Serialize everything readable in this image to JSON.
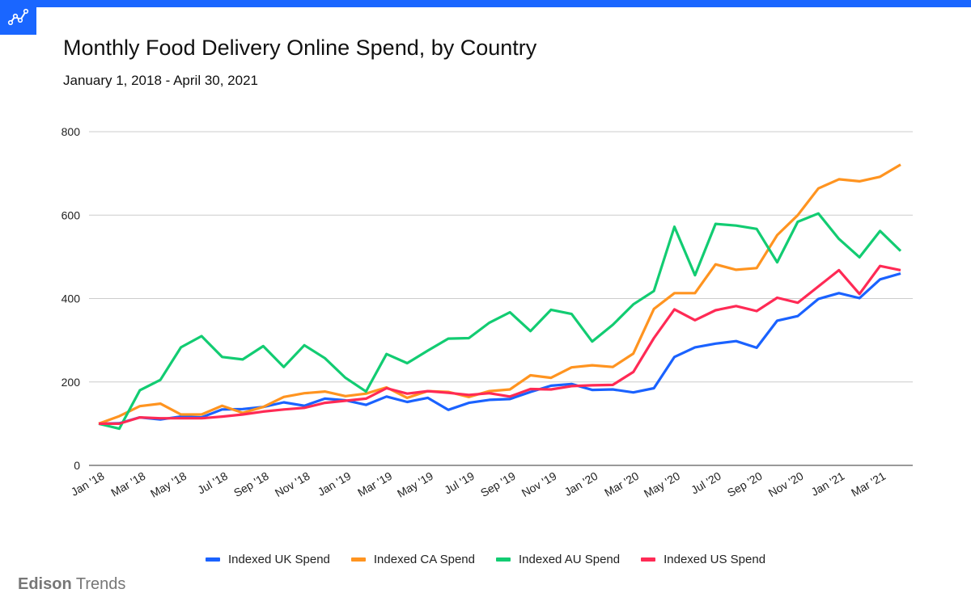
{
  "header": {
    "icon": "line-chart-icon",
    "accent": "#1a66ff"
  },
  "brand": {
    "name_bold": "Edison",
    "name_light": "Trends"
  },
  "chart_data": {
    "type": "line",
    "title": "Monthly Food Delivery Online Spend, by Country",
    "subtitle": "January 1, 2018 - April 30, 2021",
    "xlabel": "",
    "ylabel": "",
    "ylim": [
      0,
      800
    ],
    "yticks": [
      "0",
      "200",
      "400",
      "600",
      "800"
    ],
    "grid": true,
    "legend": "bottom",
    "x": [
      "Jan '18",
      "Feb '18",
      "Mar '18",
      "Apr '18",
      "May '18",
      "Jun '18",
      "Jul '18",
      "Aug '18",
      "Sep '18",
      "Oct '18",
      "Nov '18",
      "Dec '18",
      "Jan '19",
      "Feb '19",
      "Mar '19",
      "Apr '19",
      "May '19",
      "Jun '19",
      "Jul '19",
      "Aug '19",
      "Sep '19",
      "Oct '19",
      "Nov '19",
      "Dec '19",
      "Jan '20",
      "Feb '20",
      "Mar '20",
      "Apr '20",
      "May '20",
      "Jun '20",
      "Jul '20",
      "Aug '20",
      "Sep '20",
      "Oct '20",
      "Nov '20",
      "Dec '20",
      "Jan '21",
      "Feb '21",
      "Mar '21",
      "Apr '21"
    ],
    "xticks": [
      "Jan '18",
      "Mar '18",
      "May '18",
      "Jul '18",
      "Sep '18",
      "Nov '18",
      "Jan '19",
      "Mar '19",
      "May '19",
      "Jul '19",
      "Sep '19",
      "Nov '19",
      "Jan '20",
      "Mar '20",
      "May '20",
      "Jul '20",
      "Sep '20",
      "Nov '20",
      "Jan '21",
      "Mar '21"
    ],
    "series": [
      {
        "name": "Indexed UK Spend",
        "color": "#1a62ff",
        "values": [
          100,
          101,
          115,
          110,
          117,
          115,
          134,
          135,
          140,
          151,
          143,
          160,
          156,
          145,
          165,
          152,
          162,
          133,
          150,
          157,
          159,
          176,
          191,
          195,
          181,
          182,
          175,
          185,
          260,
          283,
          292,
          298,
          282,
          347,
          358,
          399,
          413,
          401,
          446,
          460
        ]
      },
      {
        "name": "Indexed CA Spend",
        "color": "#ff9420",
        "values": [
          100,
          118,
          142,
          148,
          122,
          122,
          143,
          126,
          140,
          164,
          173,
          177,
          166,
          172,
          187,
          162,
          178,
          176,
          164,
          178,
          182,
          216,
          210,
          235,
          240,
          236,
          268,
          375,
          413,
          413,
          482,
          469,
          473,
          552,
          600,
          664,
          686,
          681,
          692,
          721
        ]
      },
      {
        "name": "Indexed AU Spend",
        "color": "#12cc72",
        "values": [
          100,
          88,
          180,
          205,
          283,
          310,
          260,
          254,
          286,
          236,
          288,
          257,
          210,
          177,
          267,
          245,
          275,
          304,
          305,
          342,
          367,
          322,
          373,
          363,
          297,
          337,
          386,
          418,
          572,
          456,
          579,
          575,
          567,
          487,
          584,
          604,
          543,
          499,
          562,
          514
        ]
      },
      {
        "name": "Indexed US Spend",
        "color": "#ff2a55",
        "values": [
          100,
          100,
          115,
          113,
          113,
          113,
          117,
          122,
          129,
          134,
          138,
          150,
          155,
          160,
          185,
          172,
          178,
          174,
          169,
          173,
          165,
          183,
          182,
          190,
          192,
          193,
          224,
          305,
          374,
          348,
          372,
          382,
          370,
          402,
          390,
          429,
          468,
          411,
          478,
          468
        ]
      }
    ]
  }
}
